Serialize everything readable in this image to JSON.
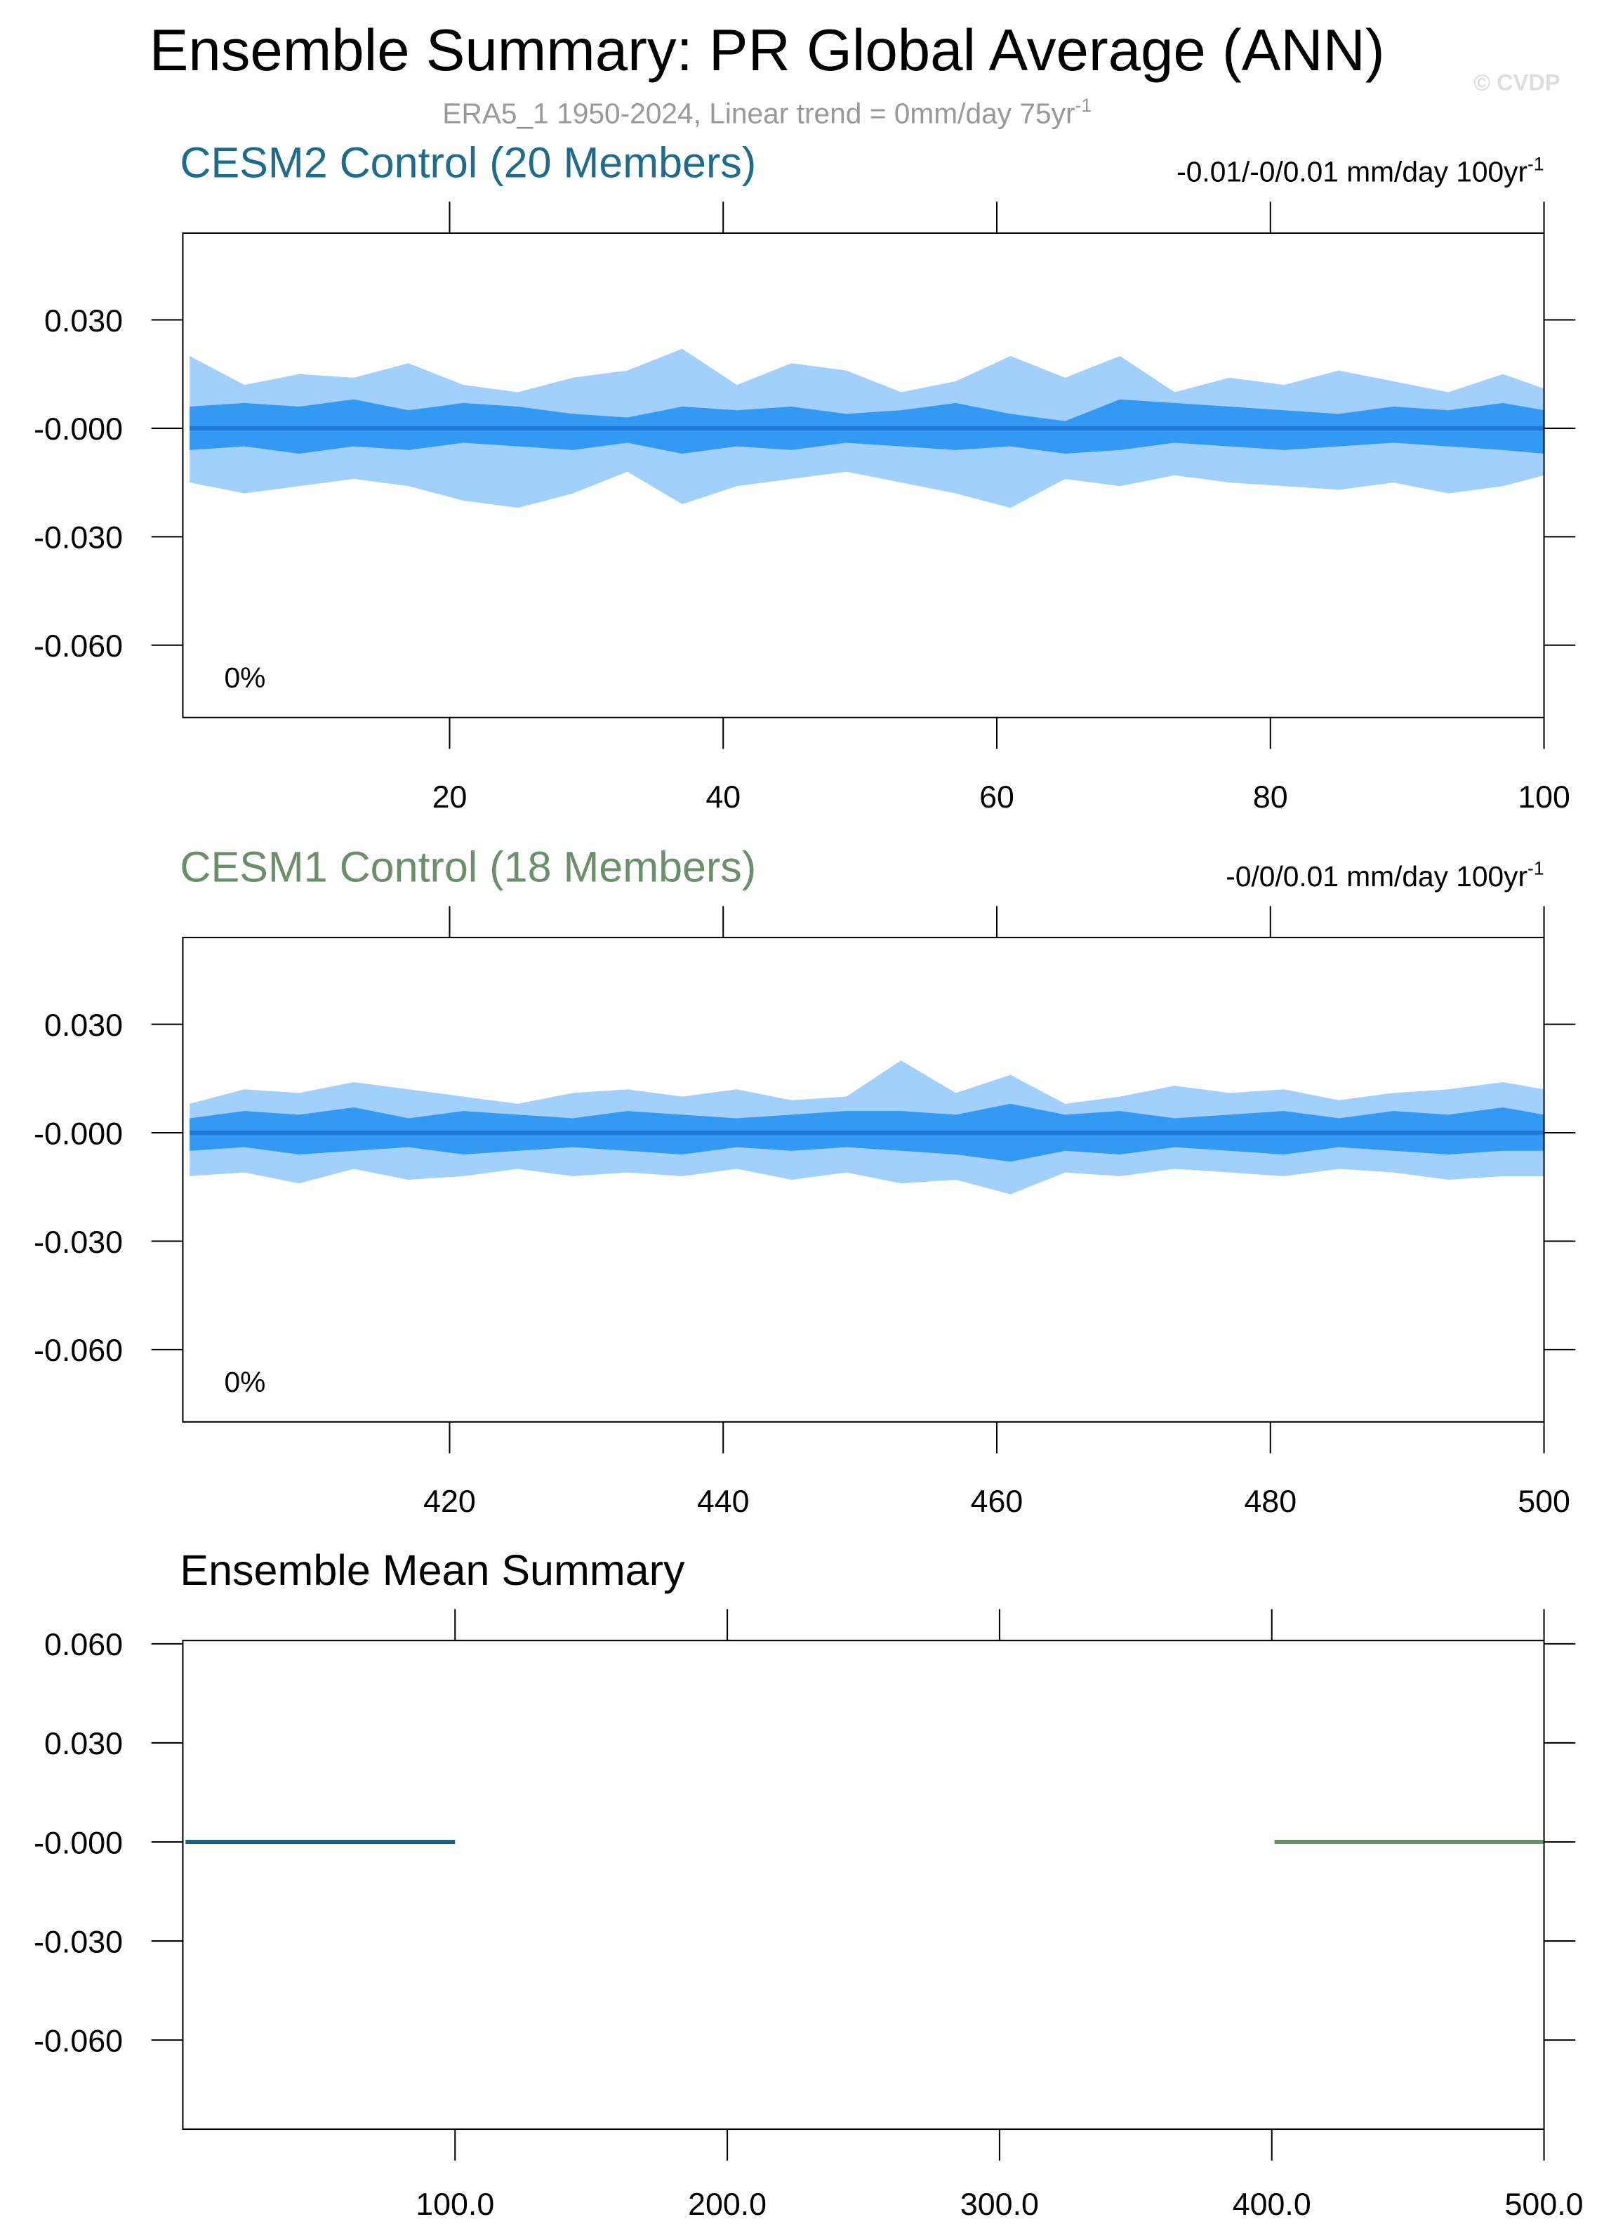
{
  "title": "Ensemble Summary: PR Global Average (ANN)",
  "watermark": "© CVDP",
  "subtitle": {
    "text": "ERA5_1 1950-2024, Linear trend = 0mm/day 75yr",
    "sup": "-1"
  },
  "chart_data": [
    {
      "type": "band",
      "title": "CESM2 Control (20 Members)",
      "title_color": "#1f6b8c",
      "trend": {
        "text": "-0.01/-0/0.01 mm/day 100yr",
        "sup": "-1"
      },
      "annotation": "0%",
      "xlim": [
        0.5,
        100
      ],
      "ylim": [
        -0.08,
        0.054
      ],
      "xticks": [
        20,
        40,
        60,
        80,
        100
      ],
      "yticks": [
        {
          "value": 0.03,
          "label": "0.030"
        },
        {
          "value": 0,
          "label": "-0.000"
        },
        {
          "value": -0.03,
          "label": "-0.030"
        },
        {
          "value": -0.06,
          "label": "-0.060"
        }
      ],
      "x": [
        1,
        5,
        9,
        13,
        17,
        21,
        25,
        29,
        33,
        37,
        41,
        45,
        49,
        53,
        57,
        61,
        65,
        69,
        73,
        77,
        81,
        85,
        89,
        93,
        97,
        100
      ],
      "bands": [
        {
          "color": "#a0d0fb",
          "upper": [
            0.02,
            0.012,
            0.015,
            0.014,
            0.018,
            0.012,
            0.01,
            0.014,
            0.016,
            0.022,
            0.012,
            0.018,
            0.016,
            0.01,
            0.013,
            0.02,
            0.014,
            0.02,
            0.01,
            0.014,
            0.012,
            0.016,
            0.013,
            0.01,
            0.015,
            0.011
          ],
          "lower": [
            -0.015,
            -0.018,
            -0.016,
            -0.014,
            -0.016,
            -0.02,
            -0.022,
            -0.018,
            -0.012,
            -0.021,
            -0.016,
            -0.014,
            -0.012,
            -0.015,
            -0.018,
            -0.022,
            -0.014,
            -0.016,
            -0.013,
            -0.015,
            -0.016,
            -0.017,
            -0.015,
            -0.018,
            -0.016,
            -0.013
          ]
        },
        {
          "color": "#3399f2",
          "upper": [
            0.006,
            0.007,
            0.006,
            0.008,
            0.005,
            0.007,
            0.006,
            0.004,
            0.003,
            0.006,
            0.005,
            0.006,
            0.004,
            0.005,
            0.007,
            0.004,
            0.002,
            0.008,
            0.007,
            0.006,
            0.005,
            0.004,
            0.006,
            0.005,
            0.007,
            0.005
          ],
          "lower": [
            -0.006,
            -0.005,
            -0.007,
            -0.005,
            -0.006,
            -0.004,
            -0.005,
            -0.006,
            -0.004,
            -0.007,
            -0.005,
            -0.006,
            -0.004,
            -0.005,
            -0.006,
            -0.005,
            -0.007,
            -0.006,
            -0.004,
            -0.005,
            -0.006,
            -0.005,
            -0.004,
            -0.005,
            -0.006,
            -0.007
          ]
        }
      ],
      "mean": {
        "color": "#1f7ad6",
        "values": [
          0,
          0,
          0,
          0,
          0,
          0,
          0,
          0,
          0,
          0,
          0,
          0,
          0,
          0,
          0,
          0,
          0,
          0,
          0,
          0,
          0,
          0,
          0,
          0,
          0,
          0
        ]
      }
    },
    {
      "type": "band",
      "title": "CESM1 Control (18 Members)",
      "title_color": "#6a8f6a",
      "trend": {
        "text": "-0/0/0.01 mm/day 100yr",
        "sup": "-1"
      },
      "annotation": "0%",
      "xlim": [
        400.5,
        500
      ],
      "ylim": [
        -0.08,
        0.054
      ],
      "xticks": [
        420,
        440,
        460,
        480,
        500
      ],
      "yticks": [
        {
          "value": 0.03,
          "label": "0.030"
        },
        {
          "value": 0,
          "label": "-0.000"
        },
        {
          "value": -0.03,
          "label": "-0.030"
        },
        {
          "value": -0.06,
          "label": "-0.060"
        }
      ],
      "x": [
        401,
        405,
        409,
        413,
        417,
        421,
        425,
        429,
        433,
        437,
        441,
        445,
        449,
        453,
        457,
        461,
        465,
        469,
        473,
        477,
        481,
        485,
        489,
        493,
        497,
        500
      ],
      "bands": [
        {
          "color": "#a0d0fb",
          "upper": [
            0.008,
            0.012,
            0.011,
            0.014,
            0.012,
            0.01,
            0.008,
            0.011,
            0.012,
            0.01,
            0.012,
            0.009,
            0.01,
            0.02,
            0.011,
            0.016,
            0.008,
            0.01,
            0.013,
            0.011,
            0.012,
            0.009,
            0.011,
            0.012,
            0.014,
            0.012
          ],
          "lower": [
            -0.012,
            -0.011,
            -0.014,
            -0.01,
            -0.013,
            -0.012,
            -0.01,
            -0.012,
            -0.011,
            -0.012,
            -0.01,
            -0.013,
            -0.011,
            -0.014,
            -0.013,
            -0.017,
            -0.011,
            -0.012,
            -0.01,
            -0.011,
            -0.012,
            -0.01,
            -0.011,
            -0.013,
            -0.012,
            -0.012
          ]
        },
        {
          "color": "#3399f2",
          "upper": [
            0.004,
            0.006,
            0.005,
            0.007,
            0.004,
            0.006,
            0.005,
            0.004,
            0.006,
            0.005,
            0.004,
            0.005,
            0.006,
            0.006,
            0.005,
            0.008,
            0.005,
            0.006,
            0.004,
            0.005,
            0.006,
            0.004,
            0.006,
            0.005,
            0.007,
            0.005
          ],
          "lower": [
            -0.005,
            -0.004,
            -0.006,
            -0.005,
            -0.004,
            -0.006,
            -0.005,
            -0.004,
            -0.005,
            -0.006,
            -0.004,
            -0.005,
            -0.004,
            -0.005,
            -0.006,
            -0.008,
            -0.005,
            -0.006,
            -0.004,
            -0.005,
            -0.006,
            -0.004,
            -0.005,
            -0.006,
            -0.005,
            -0.005
          ]
        }
      ],
      "mean": {
        "color": "#1f7ad6",
        "values": [
          0,
          0,
          0,
          0,
          0,
          0,
          0,
          0,
          0,
          0,
          0,
          0,
          0,
          0,
          0,
          0,
          0,
          0,
          0,
          0,
          0,
          0,
          0,
          0,
          0,
          0
        ]
      }
    },
    {
      "type": "line",
      "title": "Ensemble Mean Summary",
      "title_color": "#000000",
      "xlim": [
        0,
        500
      ],
      "ylim": [
        -0.087,
        0.061
      ],
      "xticks": [
        {
          "value": 100,
          "label": "100.0"
        },
        {
          "value": 200,
          "label": "200.0"
        },
        {
          "value": 300,
          "label": "300.0"
        },
        {
          "value": 400,
          "label": "400.0"
        },
        {
          "value": 500,
          "label": "500.0"
        }
      ],
      "yticks": [
        {
          "value": 0.06,
          "label": "0.060"
        },
        {
          "value": 0.03,
          "label": "0.030"
        },
        {
          "value": 0,
          "label": "-0.000"
        },
        {
          "value": -0.03,
          "label": "-0.030"
        },
        {
          "value": -0.06,
          "label": "-0.060"
        }
      ],
      "lines": [
        {
          "color": "#1b5e80",
          "x": [
            1,
            100
          ],
          "values": [
            0,
            0
          ]
        },
        {
          "color": "#6a8f6a",
          "x": [
            401,
            500
          ],
          "values": [
            0,
            0
          ]
        }
      ]
    }
  ]
}
